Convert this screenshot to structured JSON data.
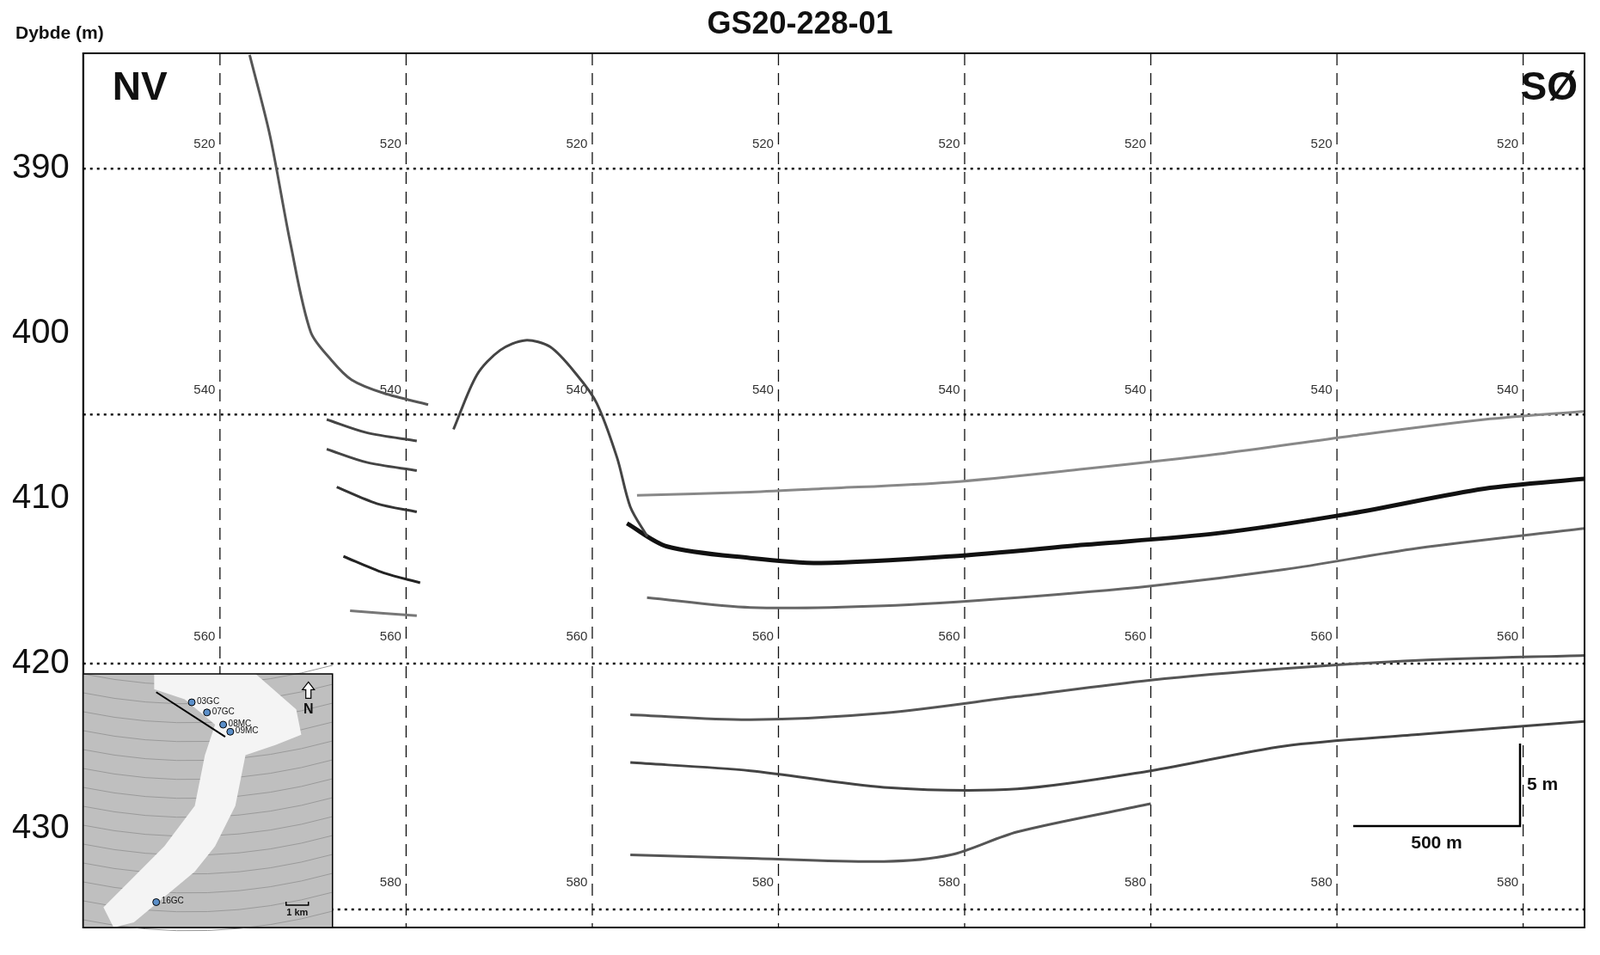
{
  "chart_data": {
    "type": "line",
    "title": "GS20-228-01",
    "y_label": "Dybde (m)",
    "annotations": {
      "left": "NV",
      "right": "SØ"
    },
    "xlim": [
      0,
      4500
    ],
    "ylim": [
      383,
      436
    ],
    "yticks": [
      390,
      400,
      410,
      420,
      430
    ],
    "grid": false,
    "tick_labels": "y",
    "depth_lines": [
      390,
      404.9,
      420,
      434.9
    ],
    "trace_lines": [
      410,
      968,
      1526,
      2084,
      2642,
      3200,
      3758,
      4316
    ],
    "trace_labels": [
      {
        "depth": 388.5,
        "label": "520"
      },
      {
        "depth": 403.4,
        "label": "540"
      },
      {
        "depth": 418.4,
        "label": "560"
      },
      {
        "depth": 433.3,
        "label": "580"
      }
    ],
    "series": [
      {
        "color": "#555555",
        "x": [
          499,
          560,
          621,
          682,
          744,
          805,
          900,
          1034
        ],
        "values": [
          383.1,
          388,
          394.5,
          399.9,
          401.6,
          402.8,
          403.6,
          404.3
        ]
      },
      {
        "color": "#444444",
        "x": [
          1110,
          1180,
          1250,
          1325,
          1400,
          1480,
          1539,
          1600,
          1640,
          1691
        ],
        "values": [
          405.8,
          402.5,
          401.0,
          400.4,
          400.8,
          402.5,
          404.2,
          407.5,
          410.5,
          412.3
        ]
      },
      {
        "color": "#888888",
        "x": [
          1660,
          2000,
          2212,
          2600,
          3000,
          3400,
          3800,
          4200,
          4500
        ],
        "values": [
          409.8,
          409.6,
          409.4,
          409.0,
          408.2,
          407.3,
          406.2,
          405.2,
          404.7
        ]
      },
      {
        "color": "#111111",
        "x": [
          1630,
          1750,
          2000,
          2212,
          2600,
          3000,
          3400,
          3800,
          4200,
          4500
        ],
        "values": [
          411.5,
          412.9,
          413.6,
          413.9,
          413.5,
          412.8,
          412.1,
          410.9,
          409.4,
          408.8
        ]
      },
      {
        "color": "#666666",
        "x": [
          1690,
          2000,
          2400,
          2800,
          3200,
          3600,
          4000,
          4500
        ],
        "values": [
          416,
          416.6,
          416.5,
          416.0,
          415.3,
          414.3,
          413.0,
          411.8
        ]
      },
      {
        "color": "#444444",
        "x": [
          730,
          850,
          1000
        ],
        "values": [
          405.2,
          406.0,
          406.5
        ]
      },
      {
        "color": "#444444",
        "x": [
          730,
          850,
          1000
        ],
        "values": [
          407.0,
          407.8,
          408.3
        ]
      },
      {
        "color": "#333333",
        "x": [
          760,
          880,
          1000
        ],
        "values": [
          409.3,
          410.3,
          410.8
        ]
      },
      {
        "color": "#222222",
        "x": [
          780,
          900,
          1010
        ],
        "values": [
          413.5,
          414.5,
          415.1
        ]
      },
      {
        "color": "#777777",
        "x": [
          800,
          1000
        ],
        "values": [
          416.8,
          417.1
        ]
      },
      {
        "color": "#555555",
        "x": [
          1640,
          2000,
          2400,
          2800,
          3200,
          3600,
          4000,
          4500
        ],
        "values": [
          423.1,
          423.4,
          423.0,
          422.0,
          421.0,
          420.3,
          419.8,
          419.5
        ]
      },
      {
        "color": "#444444",
        "x": [
          1640,
          2000,
          2400,
          2800,
          3200,
          3600,
          4000,
          4500
        ],
        "values": [
          426.0,
          426.5,
          427.5,
          427.6,
          426.5,
          425.0,
          424.3,
          423.5
        ]
      },
      {
        "color": "#555555",
        "x": [
          1640,
          2000,
          2400,
          2600,
          2800,
          3200
        ],
        "values": [
          431.6,
          431.8,
          432.0,
          431.6,
          430.2,
          428.5
        ]
      }
    ],
    "scale_bar": {
      "length_x": 500,
      "label_x": "500 m",
      "length_y": 5,
      "label_y": "5 m"
    },
    "inset_map": {
      "north_label": "N",
      "scale_label": "1 km",
      "sites": [
        {
          "label": "03GC"
        },
        {
          "label": "07GC"
        },
        {
          "label": "08MC"
        },
        {
          "label": "09MC"
        },
        {
          "label": "16GC"
        }
      ]
    }
  }
}
